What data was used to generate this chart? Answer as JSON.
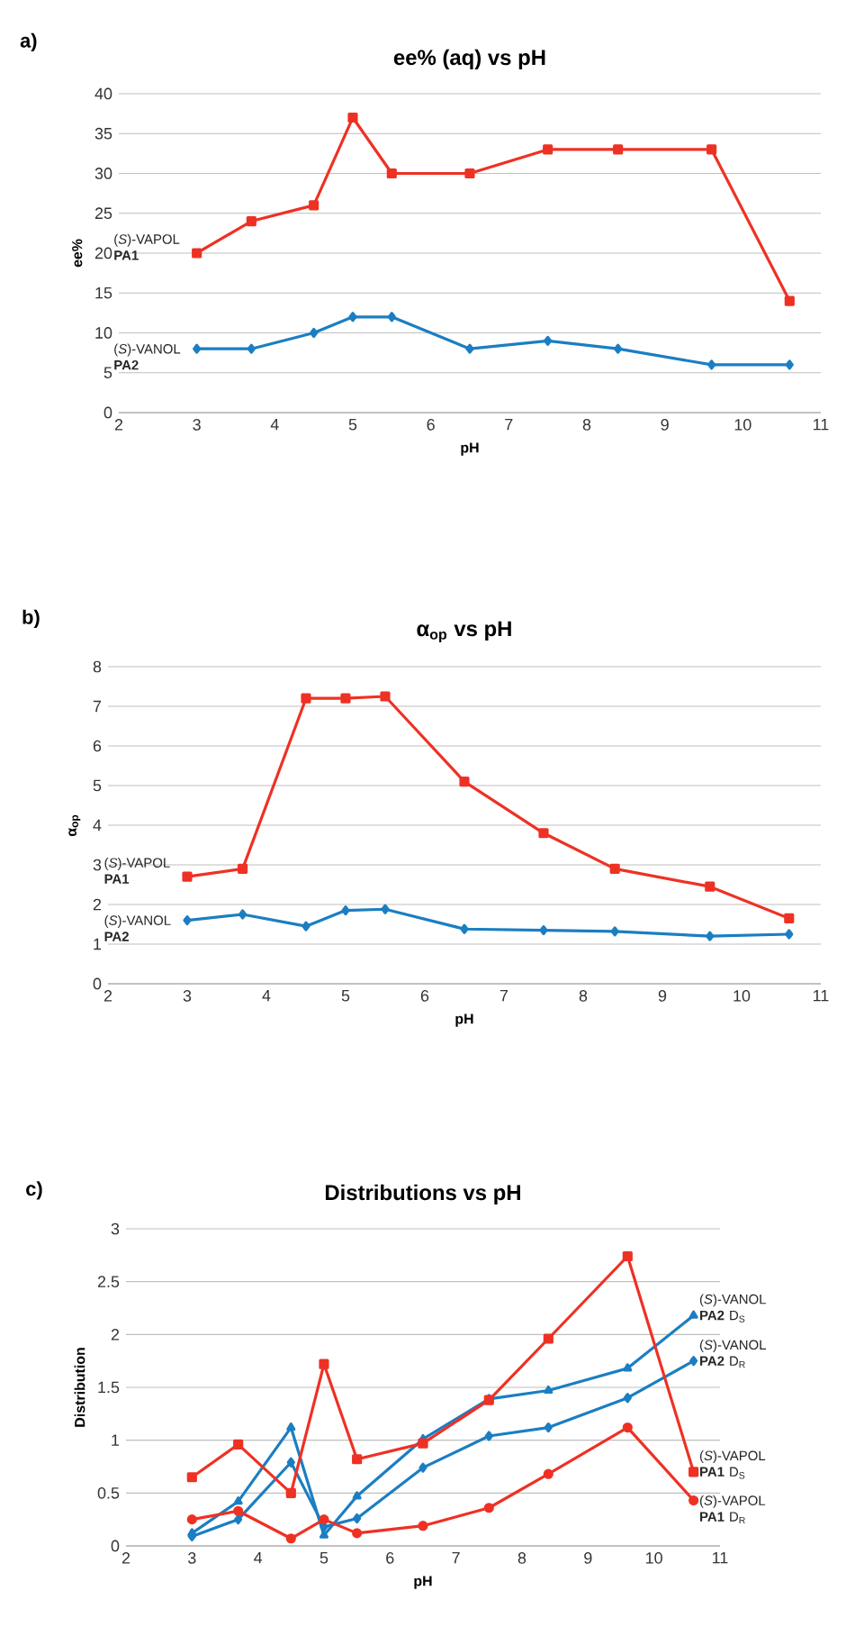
{
  "chart_data": [
    {
      "type": "line",
      "title": "ee% (aq) vs pH",
      "xlabel": "pH",
      "ylabel": "ee%",
      "annotations": [
        "a)"
      ],
      "x": [
        3,
        3.7,
        4.5,
        5,
        5.5,
        6.5,
        7.5,
        8.4,
        9.6,
        10.6
      ],
      "xlim": [
        2,
        11
      ],
      "xticks": [
        2,
        3,
        4,
        5,
        6,
        7,
        8,
        9,
        10,
        11
      ],
      "ylim": [
        0,
        40
      ],
      "yticks": [
        0,
        5,
        10,
        15,
        20,
        25,
        30,
        35,
        40
      ],
      "grid": "y",
      "series": [
        {
          "name": "(*S*)-VAPOL **PA1**",
          "color": "#ee3124",
          "marker": "square",
          "values": [
            20,
            24,
            26,
            37,
            30,
            30,
            33,
            33,
            33,
            14
          ]
        },
        {
          "name": "(*S*)-VANOL **PA2**",
          "color": "#1b7ec2",
          "marker": "diamond",
          "values": [
            8,
            8,
            10,
            12,
            12,
            8,
            9,
            8,
            6,
            6
          ]
        }
      ]
    },
    {
      "type": "line",
      "title": "α$_{op}$  vs pH",
      "xlabel": "pH",
      "ylabel": "α$_{op}$",
      "annotations": [
        "b)"
      ],
      "x": [
        3,
        3.7,
        4.5,
        5,
        5.5,
        6.5,
        7.5,
        8.4,
        9.6,
        10.6
      ],
      "xlim": [
        2,
        11
      ],
      "xticks": [
        2,
        3,
        4,
        5,
        6,
        7,
        8,
        9,
        10,
        11
      ],
      "ylim": [
        0,
        8
      ],
      "yticks": [
        0,
        1,
        2,
        3,
        4,
        5,
        6,
        7,
        8
      ],
      "grid": "y",
      "series": [
        {
          "name": "(*S*)-VAPOL **PA1**",
          "color": "#ee3124",
          "marker": "square",
          "values": [
            2.7,
            2.9,
            7.2,
            7.2,
            7.25,
            5.1,
            3.8,
            2.9,
            2.45,
            1.65
          ]
        },
        {
          "name": "(*S*)-VANOL **PA2**",
          "color": "#1b7ec2",
          "marker": "diamond",
          "values": [
            1.6,
            1.75,
            1.45,
            1.85,
            1.88,
            1.38,
            1.35,
            1.32,
            1.2,
            1.25
          ]
        }
      ]
    },
    {
      "type": "line",
      "title": "Distributions vs pH",
      "xlabel": "pH",
      "ylabel": "Distribution",
      "annotations": [
        "c)"
      ],
      "x": [
        3,
        3.7,
        4.5,
        5,
        5.5,
        6.5,
        7.5,
        8.4,
        9.6,
        10.6
      ],
      "xlim": [
        2,
        11
      ],
      "xticks": [
        2,
        3,
        4,
        5,
        6,
        7,
        8,
        9,
        10,
        11
      ],
      "ylim": [
        0,
        3
      ],
      "yticks": [
        0,
        0.5,
        1,
        1.5,
        2,
        2.5,
        3
      ],
      "grid": "y",
      "series": [
        {
          "name": "(*S*)-VANOL **PA2** D$_{S}$",
          "color": "#1b7ec2",
          "marker": "triangle",
          "values": [
            0.12,
            0.42,
            1.12,
            0.1,
            0.47,
            1.01,
            1.39,
            1.47,
            1.68,
            2.18
          ]
        },
        {
          "name": "(*S*)-VANOL **PA2** D$_{R}$",
          "color": "#1b7ec2",
          "marker": "diamond",
          "values": [
            0.09,
            0.25,
            0.79,
            0.18,
            0.26,
            0.74,
            1.04,
            1.12,
            1.4,
            1.75
          ]
        },
        {
          "name": "(*S*)-VAPOL **PA1** D$_{S}$",
          "color": "#ee3124",
          "marker": "square",
          "values": [
            0.65,
            0.96,
            0.5,
            1.72,
            0.82,
            0.97,
            1.38,
            1.96,
            2.74,
            0.7
          ]
        },
        {
          "name": "(*S*)-VAPOL **PA1** D$_{R}$",
          "color": "#ee3124",
          "marker": "circle",
          "values": [
            0.25,
            0.33,
            0.07,
            0.25,
            0.12,
            0.19,
            0.36,
            0.68,
            1.12,
            0.43
          ]
        }
      ]
    }
  ]
}
